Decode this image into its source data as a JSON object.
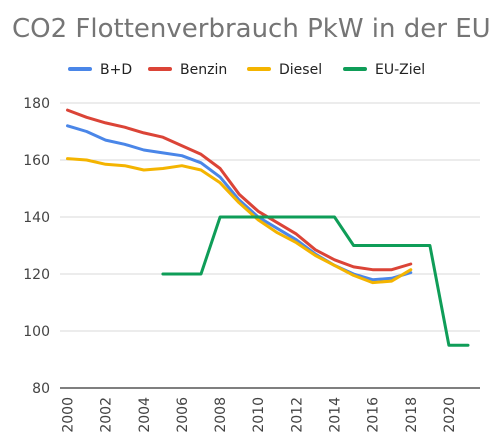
{
  "chart_data": {
    "type": "line",
    "title": "CO2 Flottenverbrauch PkW in der EU",
    "xlabel": "",
    "ylabel": "",
    "ylim": [
      80,
      180
    ],
    "xlim": [
      2000,
      2021
    ],
    "yticks": [
      80,
      100,
      120,
      140,
      160,
      180
    ],
    "xticks": [
      2000,
      2002,
      2004,
      2006,
      2008,
      2010,
      2012,
      2014,
      2016,
      2018,
      2020
    ],
    "grid": true,
    "legend_position": "top",
    "series": [
      {
        "name": "B+D",
        "color": "#4a86e8",
        "x": [
          2000,
          2001,
          2002,
          2003,
          2004,
          2005,
          2006,
          2007,
          2008,
          2009,
          2010,
          2011,
          2012,
          2013,
          2014,
          2015,
          2016,
          2017,
          2018
        ],
        "y": [
          172,
          170,
          167,
          165.5,
          163.5,
          162.5,
          161.5,
          159,
          154,
          146,
          140,
          136,
          132,
          127,
          123,
          120,
          118,
          118.5,
          120.5
        ]
      },
      {
        "name": "Benzin",
        "color": "#db4437",
        "x": [
          2000,
          2001,
          2002,
          2003,
          2004,
          2005,
          2006,
          2007,
          2008,
          2009,
          2010,
          2011,
          2012,
          2013,
          2014,
          2015,
          2016,
          2017,
          2018
        ],
        "y": [
          177.5,
          175,
          173,
          171.5,
          169.5,
          168,
          165,
          162,
          157,
          148,
          142,
          138,
          134,
          128.5,
          125,
          122.5,
          121.5,
          121.5,
          123.5
        ]
      },
      {
        "name": "Diesel",
        "color": "#f4b400",
        "x": [
          2000,
          2001,
          2002,
          2003,
          2004,
          2005,
          2006,
          2007,
          2008,
          2009,
          2010,
          2011,
          2012,
          2013,
          2014,
          2015,
          2016,
          2017,
          2018
        ],
        "y": [
          160.5,
          160,
          158.5,
          158,
          156.5,
          157,
          158,
          156.5,
          152,
          145,
          139,
          134.5,
          131,
          126.5,
          123,
          119.5,
          117,
          117.5,
          121.5
        ]
      },
      {
        "name": "EU-Ziel",
        "color": "#0f9d58",
        "x": [
          2005,
          2007,
          2008,
          2014,
          2015,
          2019,
          2020,
          2021
        ],
        "y": [
          120,
          120,
          140,
          140,
          130,
          130,
          95,
          95
        ]
      }
    ]
  }
}
